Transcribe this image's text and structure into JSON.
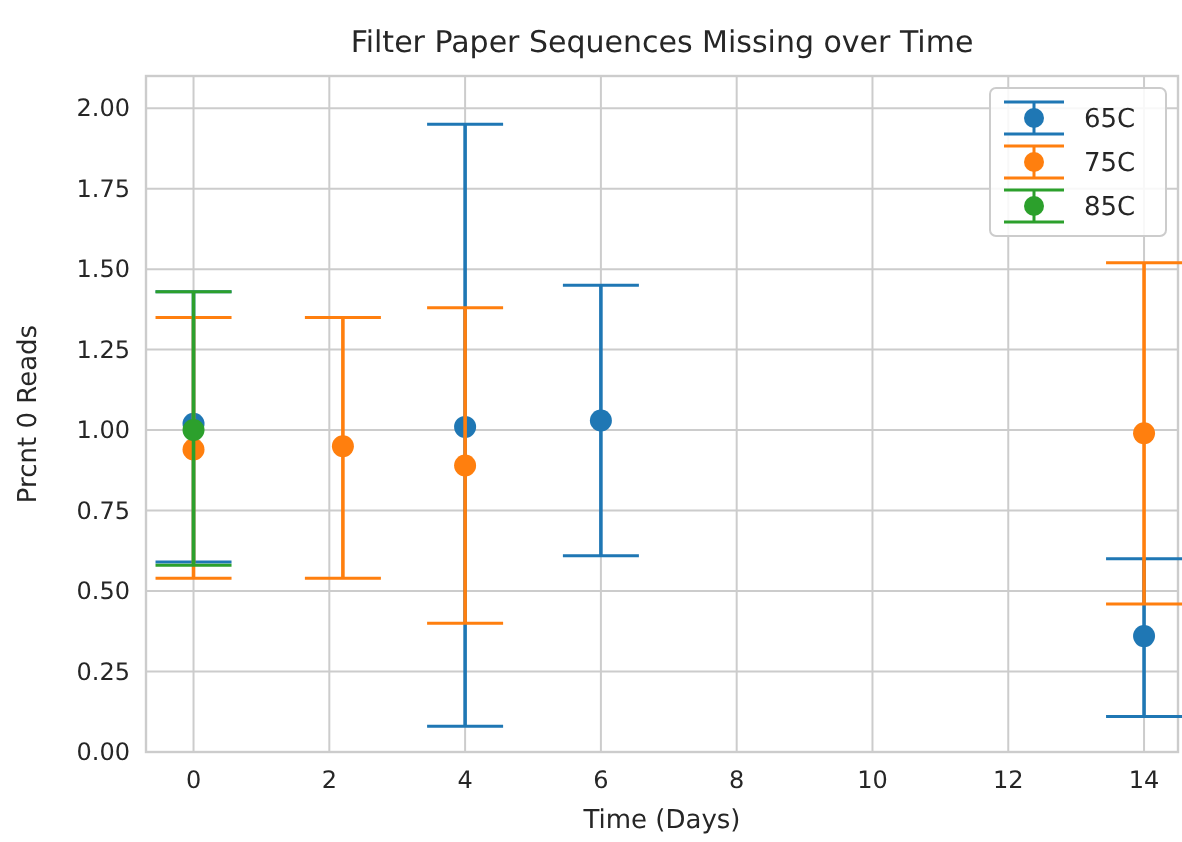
{
  "chart_data": {
    "type": "scatter",
    "title": "Filter Paper Sequences Missing over Time",
    "xlabel": "Time (Days)",
    "ylabel": "Prcnt 0 Reads",
    "xlim": [
      -0.7,
      14.5
    ],
    "xticks": [
      0,
      2,
      4,
      6,
      8,
      10,
      12,
      14
    ],
    "ylim": [
      0,
      2.1
    ],
    "yticks": [
      {
        "value": 0,
        "label": "0.00"
      },
      {
        "value": 0.25,
        "label": "0.25"
      },
      {
        "value": 0.5,
        "label": "0.50"
      },
      {
        "value": 0.75,
        "label": "0.75"
      },
      {
        "value": 1,
        "label": "1.00"
      },
      {
        "value": 1.25,
        "label": "1.25"
      },
      {
        "value": 1.5,
        "label": "1.50"
      },
      {
        "value": 1.75,
        "label": "1.75"
      },
      {
        "value": 2,
        "label": "2.00"
      }
    ],
    "grid": true,
    "legend": "top right",
    "marker": "circle",
    "series": [
      {
        "name": "65C",
        "color": "#1f77b4",
        "x": [
          0,
          4,
          6,
          14
        ],
        "values": [
          1.02,
          1.01,
          1.03,
          0.36
        ],
        "errors": [
          [
            0.59,
            1.43
          ],
          [
            0.08,
            1.95
          ],
          [
            0.61,
            1.45
          ],
          [
            0.11,
            0.6
          ]
        ]
      },
      {
        "name": "75C",
        "color": "#ff7f0e",
        "x": [
          0,
          2.2,
          4,
          14
        ],
        "values": [
          0.94,
          0.95,
          0.89,
          0.99
        ],
        "errors": [
          [
            0.54,
            1.35
          ],
          [
            0.54,
            1.35
          ],
          [
            0.4,
            1.38
          ],
          [
            0.46,
            1.52
          ]
        ]
      },
      {
        "name": "85C",
        "color": "#2ca02c",
        "x": [
          0
        ],
        "values": [
          1.0
        ],
        "errors": [
          [
            0.58,
            1.43
          ]
        ]
      }
    ]
  }
}
